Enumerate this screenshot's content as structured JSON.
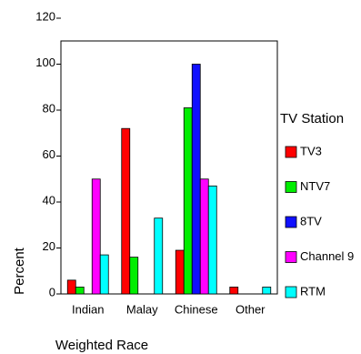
{
  "chart_data": {
    "type": "bar",
    "y_label": "Percent",
    "x_label": "Weighted Race",
    "legend_title": "TV Station",
    "categories": [
      "Indian",
      "Malay",
      "Chinese",
      "Other"
    ],
    "series": [
      {
        "name": "TV3",
        "color": "#ff0000",
        "values": [
          6,
          72,
          19,
          3
        ]
      },
      {
        "name": "NTV7",
        "color": "#00ee00",
        "values": [
          3,
          16,
          81,
          0
        ]
      },
      {
        "name": "8TV",
        "color": "#1010ff",
        "values": [
          0,
          0,
          100,
          0
        ]
      },
      {
        "name": "Channel 9",
        "color": "#ff00ff",
        "values": [
          50,
          0,
          50,
          0
        ]
      },
      {
        "name": "RTM",
        "color": "#00ffff",
        "values": [
          17,
          33,
          47,
          3
        ]
      }
    ],
    "ylim": [
      0,
      120
    ],
    "yticks": [
      0,
      20,
      40,
      60,
      80,
      100,
      120
    ],
    "legend": "right"
  }
}
